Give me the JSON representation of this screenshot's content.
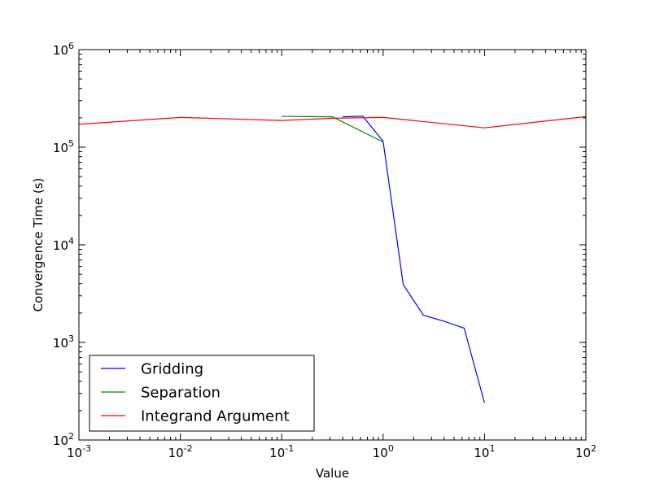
{
  "chart_data": {
    "type": "line",
    "title": "",
    "xlabel": "Value",
    "ylabel": "Convergence Time (s)",
    "xscale": "log",
    "yscale": "log",
    "xlim": [
      0.001,
      100
    ],
    "ylim": [
      100,
      1000000
    ],
    "grid": false,
    "legend_position": "lower-left",
    "x_ticks": [
      {
        "value": 0.001,
        "base": "10",
        "exp": "-3"
      },
      {
        "value": 0.01,
        "base": "10",
        "exp": "-2"
      },
      {
        "value": 0.1,
        "base": "10",
        "exp": "-1"
      },
      {
        "value": 1,
        "base": "10",
        "exp": "0"
      },
      {
        "value": 10,
        "base": "10",
        "exp": "1"
      },
      {
        "value": 100,
        "base": "10",
        "exp": "2"
      }
    ],
    "y_ticks": [
      {
        "value": 100,
        "base": "10",
        "exp": "2"
      },
      {
        "value": 1000,
        "base": "10",
        "exp": "3"
      },
      {
        "value": 10000,
        "base": "10",
        "exp": "4"
      },
      {
        "value": 100000,
        "base": "10",
        "exp": "5"
      },
      {
        "value": 1000000,
        "base": "10",
        "exp": "6"
      }
    ],
    "series": [
      {
        "name": "Gridding",
        "color": "#0000ff",
        "x": [
          0.4,
          0.63,
          1.0,
          1.58,
          2.5,
          3.98,
          6.3,
          10.0
        ],
        "y": [
          205000,
          208000,
          115000,
          3900,
          1900,
          1650,
          1400,
          240
        ]
      },
      {
        "name": "Separation",
        "color": "#008000",
        "x": [
          0.1,
          0.316,
          1.0
        ],
        "y": [
          207000,
          205000,
          113000
        ]
      },
      {
        "name": "Integrand Argument",
        "color": "#ff0000",
        "x": [
          0.001,
          0.01,
          0.1,
          0.316,
          1.0,
          10.0,
          100.0
        ],
        "y": [
          172000,
          202000,
          188000,
          198000,
          202000,
          158000,
          206000
        ]
      }
    ]
  }
}
